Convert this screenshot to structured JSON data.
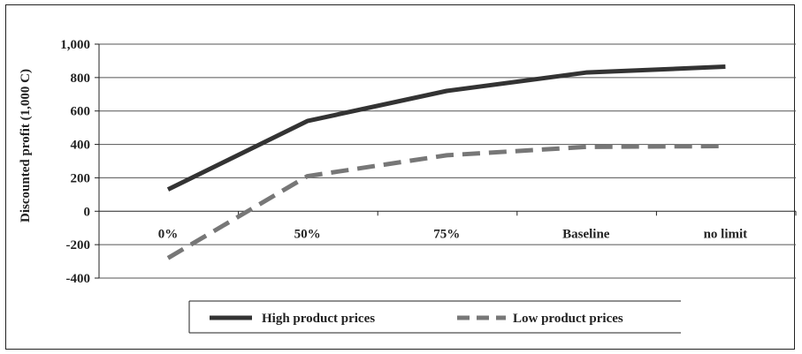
{
  "chart_data": {
    "type": "line",
    "categories": [
      "0%",
      "50%",
      "75%",
      "Baseline",
      "no limit"
    ],
    "ylabel": "Discounted profit (1,000 C)",
    "ylim": [
      -400,
      1000
    ],
    "yticks": [
      "1,000",
      "800",
      "600",
      "400",
      "200",
      "0",
      "-200",
      "-400"
    ],
    "grid": true,
    "legend_position": "bottom",
    "series": [
      {
        "name": "High product prices",
        "values": [
          130,
          540,
          720,
          830,
          865
        ],
        "color": "#333333",
        "style": "solid"
      },
      {
        "name": "Low product prices",
        "values": [
          -280,
          210,
          335,
          385,
          390
        ],
        "color": "#777777",
        "style": "dashed"
      }
    ]
  }
}
